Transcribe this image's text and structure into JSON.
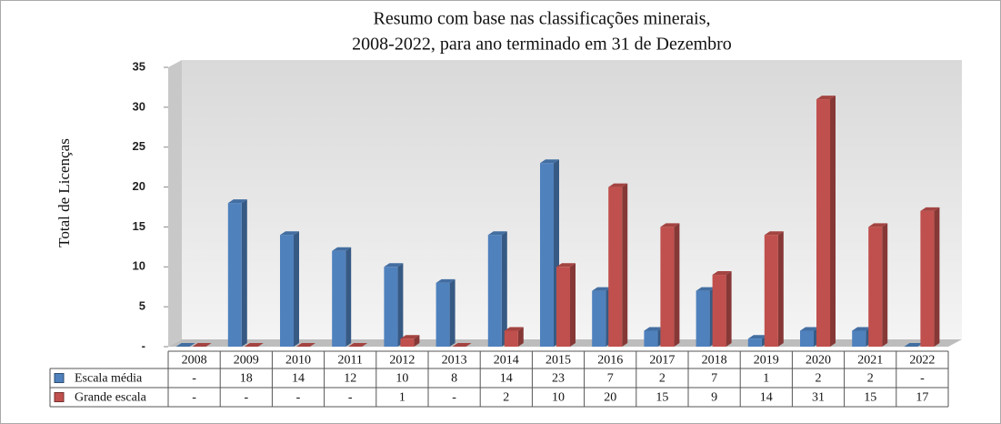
{
  "chart_data": {
    "type": "bar3d",
    "title": [
      "Resumo com base nas classificações minerais,",
      "2008-2022, para ano terminado em 31 de Dezembro"
    ],
    "y_label": "Total de Licenças",
    "categories": [
      "2008",
      "2009",
      "2010",
      "2011",
      "2012",
      "2013",
      "2014",
      "2015",
      "2016",
      "2017",
      "2018",
      "2019",
      "2020",
      "2021",
      "2022"
    ],
    "series": [
      {
        "name": "Escala média",
        "color": "#4f81bd",
        "values": [
          0,
          18,
          14,
          12,
          10,
          8,
          14,
          23,
          7,
          2,
          7,
          1,
          2,
          2,
          0
        ],
        "value_labels": [
          "-",
          "18",
          "14",
          "12",
          "10",
          "8",
          "14",
          "23",
          "7",
          "2",
          "7",
          "1",
          "2",
          "2",
          "-"
        ]
      },
      {
        "name": "Grande escala",
        "color": "#c0504d",
        "values": [
          0,
          0,
          0,
          0,
          1,
          0,
          2,
          10,
          20,
          15,
          9,
          14,
          31,
          15,
          17
        ],
        "value_labels": [
          "-",
          "-",
          "-",
          "-",
          "1",
          "-",
          "2",
          "10",
          "20",
          "15",
          "9",
          "14",
          "31",
          "15",
          "17"
        ]
      }
    ],
    "ylim": [
      0,
      35
    ],
    "yticks": [
      {
        "value": 0,
        "label": "-"
      },
      5,
      10,
      15,
      20,
      25,
      30,
      35
    ],
    "grid": false
  }
}
